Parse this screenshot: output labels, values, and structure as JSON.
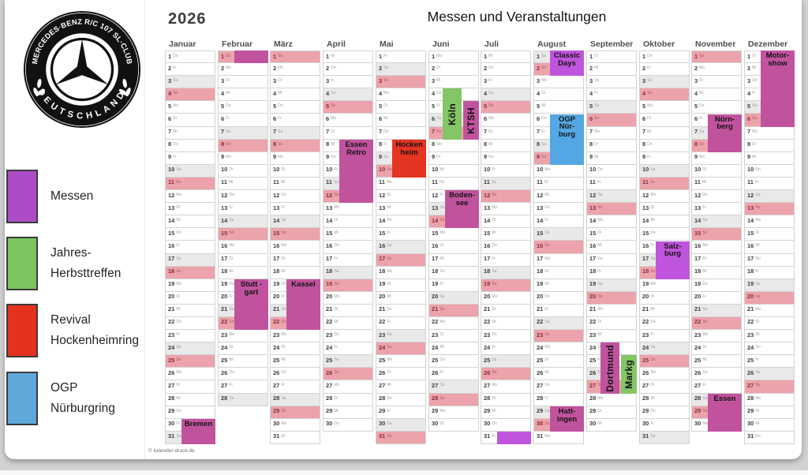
{
  "year": "2026",
  "title": "Messen und Veranstaltungen",
  "credit": "© kalender-druck.de",
  "logo": {
    "arc_top": "MERCEDES·BENZ R/C 107 SL·CLUB",
    "arc_bottom": "DEUTSCHLAND"
  },
  "weekdays": [
    "Mo",
    "Di",
    "Mi",
    "Do",
    "Fr",
    "Sa",
    "So"
  ],
  "colors": {
    "messen": "#c1539e",
    "messen_bright": "#bf55dc",
    "treffen": "#84c566",
    "revival": "#e53422",
    "ogp": "#54a7e3",
    "saturday": "#e9e9e9",
    "sunday": "#eca3ab"
  },
  "legend": [
    {
      "label": "Messen",
      "color": "#ac4cc6"
    },
    {
      "label": "Jahres-\nHerbsttreffen",
      "color": "#7cc561"
    },
    {
      "label": "Revival\nHockenheimring",
      "color": "#e5321f"
    },
    {
      "label": "OGP\nNürburgring",
      "color": "#5fa8da"
    }
  ],
  "months": [
    {
      "name": "Januar",
      "days": 31,
      "start": 3
    },
    {
      "name": "Februar",
      "days": 28,
      "start": 6
    },
    {
      "name": "März",
      "days": 31,
      "start": 6
    },
    {
      "name": "April",
      "days": 30,
      "start": 2
    },
    {
      "name": "Mai",
      "days": 31,
      "start": 4
    },
    {
      "name": "Juni",
      "days": 30,
      "start": 0
    },
    {
      "name": "Juli",
      "days": 31,
      "start": 2
    },
    {
      "name": "August",
      "days": 31,
      "start": 5
    },
    {
      "name": "September",
      "days": 30,
      "start": 1
    },
    {
      "name": "Oktober",
      "days": 31,
      "start": 3
    },
    {
      "name": "November",
      "days": 30,
      "start": 6
    },
    {
      "name": "Dezember",
      "days": 31,
      "start": 1
    }
  ],
  "events": [
    {
      "month": 1,
      "start": 30,
      "end": 31,
      "label": "Bremen",
      "color": "messen"
    },
    {
      "month": 2,
      "start": 1,
      "end": 1,
      "label": "",
      "color": "messen"
    },
    {
      "month": 2,
      "start": 19,
      "end": 22,
      "label": "Stutt -\ngart",
      "color": "messen"
    },
    {
      "month": 3,
      "start": 19,
      "end": 22,
      "label": "Kassel",
      "color": "messen"
    },
    {
      "month": 4,
      "start": 8,
      "end": 12,
      "label": "Essen\nRetro",
      "color": "messen"
    },
    {
      "month": 5,
      "start": 8,
      "end": 10,
      "label": "Hocken\nheim",
      "color": "revival"
    },
    {
      "month": 6,
      "start": 4,
      "end": 7,
      "label": "Köln",
      "color": "treffen",
      "rotated": true,
      "slot": 1
    },
    {
      "month": 6,
      "start": 5,
      "end": 7,
      "label": "KTSH",
      "color": "messen",
      "rotated": true,
      "slot": 2
    },
    {
      "month": 6,
      "start": 12,
      "end": 14,
      "label": "Boden-\nsee",
      "color": "messen"
    },
    {
      "month": 7,
      "start": 31,
      "end": 31,
      "label": "",
      "color": "messen_bright"
    },
    {
      "month": 8,
      "start": 1,
      "end": 2,
      "label": "Classic\nDays",
      "color": "messen_bright"
    },
    {
      "month": 8,
      "start": 6,
      "end": 9,
      "label": "OGP\nNür-\nburg",
      "color": "ogp"
    },
    {
      "month": 8,
      "start": 29,
      "end": 30,
      "label": "Hatt-\ningen",
      "color": "messen"
    },
    {
      "month": 9,
      "start": 24,
      "end": 27,
      "label": "Dortmund",
      "color": "messen",
      "rotated": true,
      "slot": 1
    },
    {
      "month": 9,
      "start": 25,
      "end": 27,
      "label": "Markg",
      "color": "treffen",
      "rotated": true,
      "slot": 2
    },
    {
      "month": 10,
      "start": 16,
      "end": 18,
      "label": "Salz-\nburg",
      "color": "messen_bright"
    },
    {
      "month": 11,
      "start": 6,
      "end": 8,
      "label": "Nürn-\nberg",
      "color": "messen"
    },
    {
      "month": 11,
      "start": 28,
      "end": 30,
      "label": "Essen",
      "color": "messen"
    },
    {
      "month": 12,
      "start": 1,
      "end": 6,
      "label": "Motor-\nshow",
      "color": "messen"
    }
  ],
  "legend_tops": [
    215,
    300,
    385,
    471
  ]
}
